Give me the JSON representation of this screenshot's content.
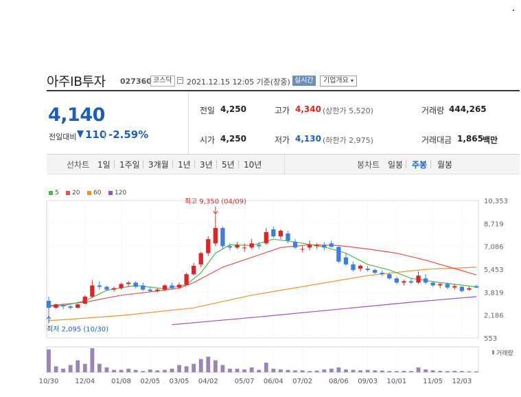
{
  "stock": {
    "name": "아주IB투자",
    "code": "027360",
    "market": "코스닥",
    "datetime": "2021.12.15 12:05 기준(장중)",
    "live_label": "실시간",
    "overview_label": "기업개요",
    "price": "4,140",
    "change_label": "전일대비",
    "change_value": "110",
    "change_pct": "-2.59%",
    "stats": {
      "prev_close_label": "전일",
      "prev_close": "4,250",
      "high_label": "고가",
      "high": "4,340",
      "upper_limit": "(상한가 5,520)",
      "volume_label": "거래량",
      "volume": "444,265",
      "open_label": "시가",
      "open": "4,250",
      "low_label": "저가",
      "low": "4,130",
      "lower_limit": "(하한가 2,975)",
      "value_label": "거래대금",
      "value": "1,865",
      "value_unit": "백만"
    }
  },
  "period_tabs": {
    "line_label": "선차트",
    "items": [
      "1일",
      "1주일",
      "3개월",
      "1년",
      "3년",
      "5년",
      "10년"
    ],
    "candle_label": "봉차트",
    "candle_items": [
      "일봉",
      "주봉",
      "월봉"
    ],
    "selected_candle": "주봉"
  },
  "colors": {
    "up": "#d8262a",
    "down": "#3f7fd6",
    "ma5": "#4cb84c",
    "ma20": "#e05050",
    "ma60": "#f09030",
    "ma120": "#a050c0",
    "volume": "#9b85b5"
  },
  "chart_data": {
    "type": "candlestick",
    "interval": "weekly",
    "legend": [
      {
        "name": "5",
        "color": "#4cb84c"
      },
      {
        "name": "20",
        "color": "#e05050"
      },
      {
        "name": "60",
        "color": "#f09030"
      },
      {
        "name": "120",
        "color": "#a050c0"
      }
    ],
    "y_ticks": [
      10353,
      8719,
      7086,
      5453,
      3819,
      2186,
      553
    ],
    "y_tick_labels": [
      "10,353",
      "8,719",
      "7,086",
      "5,453",
      "3,819",
      "2,186",
      "553"
    ],
    "ylim": [
      553,
      10353
    ],
    "x_tick_labels": [
      "10/30",
      "12/04",
      "01/08",
      "02/05",
      "03/05",
      "04/02",
      "05/07",
      "06/04",
      "07/02",
      "08/06",
      "09/03",
      "10/01",
      "11/05",
      "12/03"
    ],
    "x_tick_index": [
      0,
      5,
      10,
      14,
      18,
      22,
      27,
      31,
      35,
      40,
      44,
      48,
      53,
      57
    ],
    "annotations": {
      "high_label": "최고 9,350 (04/09)",
      "high_index": 23,
      "high_value": 9350,
      "low_label": "최저 2,095 (10/30)",
      "low_index": 0,
      "low_value": 2095
    },
    "volume_label": "거래량",
    "candles": [
      [
        3200,
        3500,
        2095,
        2700
      ],
      [
        2700,
        3000,
        2650,
        2950
      ],
      [
        2900,
        3000,
        2600,
        2800
      ],
      [
        2800,
        2900,
        2600,
        2700
      ],
      [
        2700,
        3000,
        2650,
        2950
      ],
      [
        3000,
        3600,
        2950,
        3500
      ],
      [
        3500,
        4700,
        3400,
        4300
      ],
      [
        4300,
        4600,
        4000,
        4200
      ],
      [
        4200,
        4300,
        3900,
        4000
      ],
      [
        4000,
        4200,
        3850,
        4100
      ],
      [
        4100,
        4500,
        4000,
        4400
      ],
      [
        4400,
        4600,
        4200,
        4500
      ],
      [
        4500,
        4600,
        4100,
        4200
      ],
      [
        4300,
        4500,
        3900,
        4000
      ],
      [
        4000,
        4200,
        3800,
        3900
      ],
      [
        3900,
        4100,
        3800,
        4000
      ],
      [
        4000,
        4400,
        3900,
        4300
      ],
      [
        4300,
        4500,
        4000,
        4100
      ],
      [
        4150,
        4500,
        4050,
        4350
      ],
      [
        4350,
        5200,
        4300,
        5100
      ],
      [
        5100,
        5900,
        5000,
        5700
      ],
      [
        5800,
        6700,
        5600,
        6600
      ],
      [
        6600,
        7800,
        6400,
        7600
      ],
      [
        7300,
        9350,
        7100,
        8400
      ],
      [
        8400,
        8500,
        6900,
        7100
      ],
      [
        7100,
        7300,
        6800,
        7000
      ],
      [
        7000,
        7400,
        6900,
        7200
      ],
      [
        7000,
        7300,
        6700,
        7000
      ],
      [
        7000,
        7600,
        6900,
        7300
      ],
      [
        7200,
        7400,
        6900,
        7100
      ],
      [
        7300,
        8400,
        7200,
        8100
      ],
      [
        8300,
        8500,
        7700,
        7800
      ],
      [
        7800,
        8300,
        7600,
        8200
      ],
      [
        8000,
        8200,
        7300,
        7500
      ],
      [
        7400,
        7600,
        6900,
        7000
      ],
      [
        6900,
        7100,
        6700,
        6900
      ],
      [
        7000,
        7500,
        6800,
        7200
      ],
      [
        7100,
        7300,
        6900,
        7200
      ],
      [
        7200,
        7400,
        6800,
        7000
      ],
      [
        7300,
        7500,
        7000,
        7050
      ],
      [
        7050,
        7100,
        5900,
        6000
      ],
      [
        6300,
        6600,
        5700,
        5800
      ],
      [
        5800,
        6000,
        5300,
        5400
      ],
      [
        5500,
        5800,
        5300,
        5700
      ],
      [
        5500,
        5700,
        5300,
        5400
      ],
      [
        5400,
        5500,
        5100,
        5200
      ],
      [
        5200,
        5350,
        4950,
        5100
      ],
      [
        5100,
        5200,
        4700,
        4800
      ],
      [
        4800,
        4900,
        4400,
        4500
      ],
      [
        4500,
        4700,
        4300,
        4600
      ],
      [
        4600,
        4800,
        4400,
        4500
      ],
      [
        4500,
        5300,
        4400,
        5000
      ],
      [
        4800,
        5100,
        4400,
        4500
      ],
      [
        4500,
        4600,
        4200,
        4300
      ],
      [
        4300,
        4500,
        4100,
        4400
      ],
      [
        4400,
        4500,
        4050,
        4150
      ],
      [
        4150,
        4400,
        4000,
        4250
      ],
      [
        4200,
        4250,
        3800,
        3900
      ],
      [
        4000,
        4200,
        3900,
        4100
      ],
      [
        4250,
        4340,
        4130,
        4140
      ]
    ],
    "ma5": [
      [
        0,
        2800
      ],
      [
        2,
        2850
      ],
      [
        5,
        3200
      ],
      [
        8,
        3950
      ],
      [
        12,
        4300
      ],
      [
        16,
        4050
      ],
      [
        19,
        4350
      ],
      [
        21,
        5200
      ],
      [
        23,
        6600
      ],
      [
        25,
        7200
      ],
      [
        28,
        7150
      ],
      [
        31,
        7600
      ],
      [
        34,
        7400
      ],
      [
        38,
        7050
      ],
      [
        41,
        6600
      ],
      [
        44,
        5800
      ],
      [
        47,
        5400
      ],
      [
        50,
        4800
      ],
      [
        54,
        4500
      ],
      [
        59,
        4200
      ]
    ],
    "ma20": [
      [
        0,
        2850
      ],
      [
        5,
        3100
      ],
      [
        10,
        3600
      ],
      [
        15,
        3900
      ],
      [
        18,
        4100
      ],
      [
        20,
        4500
      ],
      [
        24,
        5600
      ],
      [
        28,
        6300
      ],
      [
        32,
        7000
      ],
      [
        36,
        7200
      ],
      [
        40,
        7150
      ],
      [
        44,
        6900
      ],
      [
        48,
        6600
      ],
      [
        52,
        6100
      ],
      [
        56,
        5500
      ],
      [
        59,
        5050
      ]
    ],
    "ma60": [
      [
        0,
        1780
      ],
      [
        10,
        2150
      ],
      [
        20,
        2700
      ],
      [
        28,
        3600
      ],
      [
        36,
        4300
      ],
      [
        44,
        5000
      ],
      [
        52,
        5450
      ],
      [
        59,
        5600
      ]
    ],
    "ma120": [
      [
        17,
        1500
      ],
      [
        30,
        2100
      ],
      [
        40,
        2600
      ],
      [
        50,
        3100
      ],
      [
        59,
        3500
      ]
    ],
    "volume": [
      0.95,
      0.25,
      0.15,
      0.3,
      0.5,
      0.35,
      1.0,
      0.35,
      0.2,
      0.1,
      0.1,
      0.15,
      0.1,
      0.05,
      0.12,
      0.08,
      0.1,
      0.15,
      0.3,
      0.25,
      0.35,
      0.55,
      0.65,
      0.5,
      0.3,
      0.15,
      0.15,
      0.12,
      0.2,
      0.1,
      0.4,
      0.15,
      0.12,
      0.1,
      0.08,
      0.08,
      0.05,
      0.07,
      0.12,
      0.15,
      0.2,
      0.12,
      0.1,
      0.08,
      0.1,
      0.08,
      0.07,
      0.05,
      0.05,
      0.06,
      0.05,
      0.2,
      0.12,
      0.08,
      0.06,
      0.05,
      0.06,
      0.05,
      0.04,
      0.04
    ]
  }
}
